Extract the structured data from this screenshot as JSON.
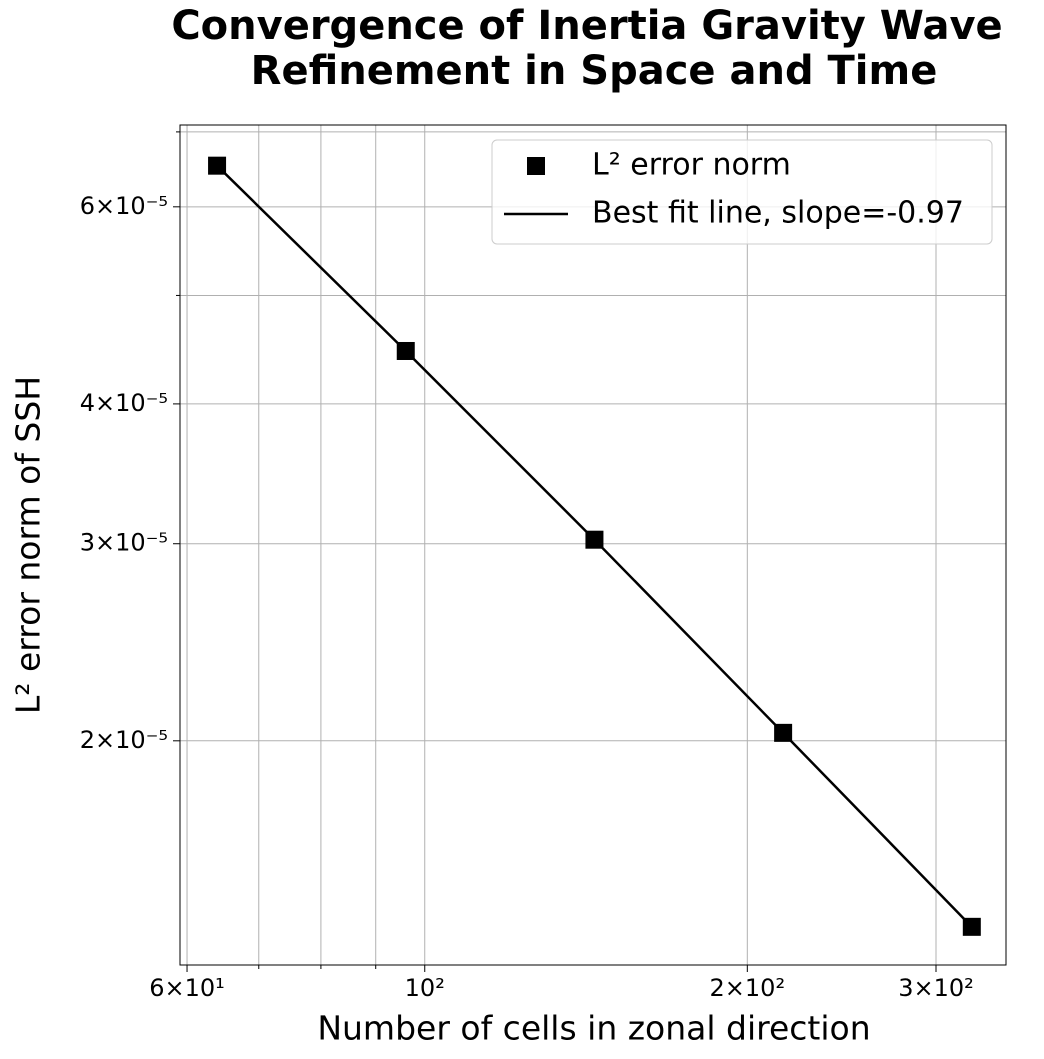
{
  "chart_data": {
    "type": "line",
    "title": [
      "Convergence of Inertia Gravity Wave",
      "Refinement in Space and Time"
    ],
    "xlabel": "Number of cells in zonal direction",
    "ylabel": "L² error norm of SSH",
    "xscale": "log",
    "yscale": "log",
    "x": [
      64,
      96,
      144,
      216,
      324
    ],
    "series": [
      {
        "name": "L² error norm",
        "color": "#000000",
        "style": "markers",
        "values": [
          6.53e-05,
          4.46e-05,
          3.025e-05,
          2.033e-05,
          1.364e-05
        ]
      },
      {
        "name": "Best fit line, slope=-0.97",
        "color": "#000000",
        "style": "line",
        "values": [
          6.53e-05,
          4.46e-05,
          3.025e-05,
          2.033e-05,
          1.364e-05
        ]
      }
    ],
    "xlim": [
      59.1,
      348.7
    ],
    "ylim": [
      1.261e-05,
      7.1e-05
    ],
    "xticks": [
      {
        "value": 60,
        "label": "6×10¹"
      },
      {
        "value": 100,
        "label": "10²"
      },
      {
        "value": 200,
        "label": "2×10²"
      },
      {
        "value": 300,
        "label": "3×10²"
      }
    ],
    "xticks_minor": [
      70,
      80,
      90
    ],
    "yticks": [
      {
        "value": 2e-05,
        "label": "2×10⁻⁵"
      },
      {
        "value": 3e-05,
        "label": "3×10⁻⁵"
      },
      {
        "value": 4e-05,
        "label": "4×10⁻⁵"
      },
      {
        "value": 6e-05,
        "label": "6×10⁻⁵"
      }
    ],
    "yticks_minor": [
      5e-05,
      7e-05
    ],
    "grid": true,
    "legend": "upper right"
  }
}
